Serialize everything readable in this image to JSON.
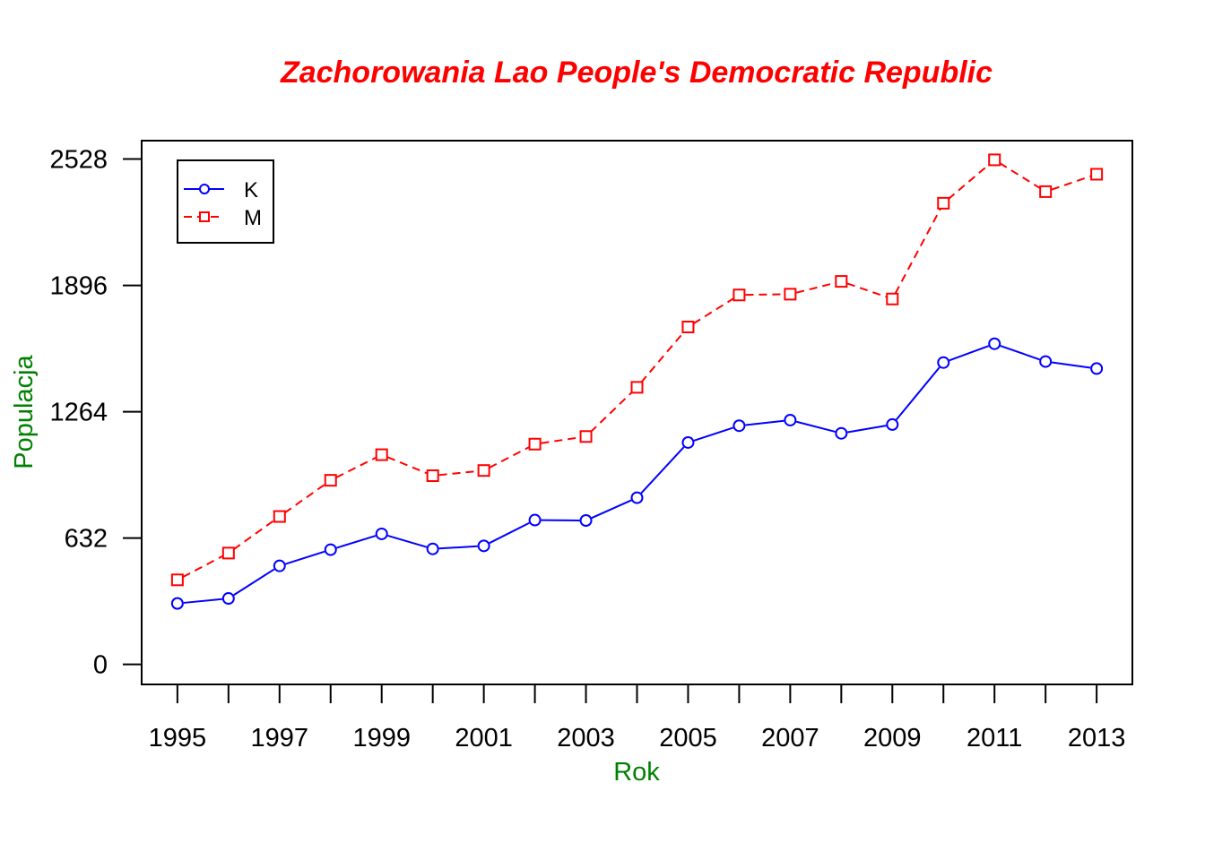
{
  "chart_data": {
    "type": "line",
    "title": "Zachorowania Lao People's Democratic Republic",
    "xlabel": "Rok",
    "ylabel": "Populacja",
    "x": [
      1995,
      1996,
      1997,
      1998,
      1999,
      2000,
      2001,
      2002,
      2003,
      2004,
      2005,
      2006,
      2007,
      2008,
      2009,
      2010,
      2011,
      2012,
      2013
    ],
    "x_tick_labels": [
      "1995",
      "1997",
      "1999",
      "2001",
      "2003",
      "2005",
      "2007",
      "2009",
      "2011",
      "2013"
    ],
    "y_ticks": [
      0,
      632,
      1264,
      1896,
      2528
    ],
    "y_tick_labels": [
      "0",
      "632",
      "1264",
      "1896",
      "2528"
    ],
    "ylim": [
      -100,
      2620
    ],
    "xlim": [
      1994.3,
      2013.7
    ],
    "grid": false,
    "legend_position": "top-left",
    "series": [
      {
        "name": "K",
        "color": "#0000ff",
        "line_style": "solid",
        "marker": "circle",
        "values": [
          305,
          330,
          493,
          574,
          653,
          578,
          593,
          722,
          720,
          834,
          1110,
          1194,
          1222,
          1156,
          1200,
          1510,
          1604,
          1515,
          1480
        ]
      },
      {
        "name": "M",
        "color": "#ff0000",
        "line_style": "dashed",
        "marker": "square",
        "values": [
          423,
          557,
          740,
          921,
          1049,
          944,
          970,
          1102,
          1140,
          1386,
          1688,
          1848,
          1852,
          1916,
          1828,
          2307,
          2524,
          2365,
          2452
        ]
      }
    ]
  },
  "colors": {
    "title": "#ff0000",
    "axis_title": "#008000",
    "axes": "#000000",
    "background": "#ffffff"
  }
}
